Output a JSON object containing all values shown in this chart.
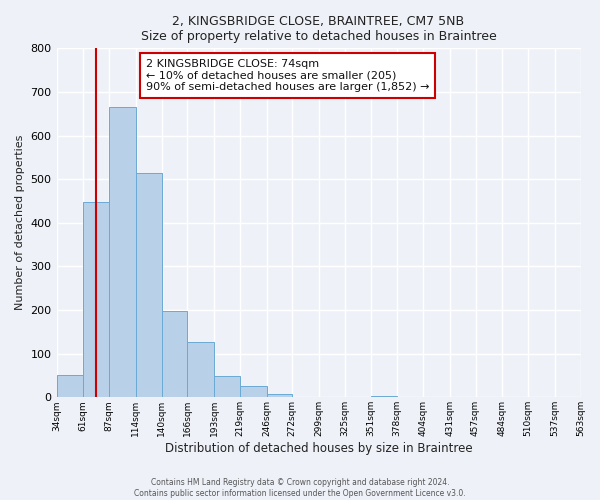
{
  "title": "2, KINGSBRIDGE CLOSE, BRAINTREE, CM7 5NB",
  "subtitle": "Size of property relative to detached houses in Braintree",
  "xlabel": "Distribution of detached houses by size in Braintree",
  "ylabel": "Number of detached properties",
  "bar_edges": [
    34,
    61,
    87,
    114,
    140,
    166,
    193,
    219,
    246,
    272,
    299,
    325,
    351,
    378,
    404,
    431,
    457,
    484,
    510,
    537,
    563
  ],
  "bar_heights": [
    50,
    447,
    665,
    515,
    197,
    127,
    49,
    26,
    8,
    0,
    0,
    0,
    4,
    0,
    0,
    0,
    0,
    0,
    0,
    0
  ],
  "bar_color": "#b8d0e8",
  "bar_edge_color": "#6aaad4",
  "tick_labels": [
    "34sqm",
    "61sqm",
    "87sqm",
    "114sqm",
    "140sqm",
    "166sqm",
    "193sqm",
    "219sqm",
    "246sqm",
    "272sqm",
    "299sqm",
    "325sqm",
    "351sqm",
    "378sqm",
    "404sqm",
    "431sqm",
    "457sqm",
    "484sqm",
    "510sqm",
    "537sqm",
    "563sqm"
  ],
  "ylim": [
    0,
    800
  ],
  "yticks": [
    0,
    100,
    200,
    300,
    400,
    500,
    600,
    700,
    800
  ],
  "property_line_x": 74,
  "property_line_color": "#cc0000",
  "annotation_title": "2 KINGSBRIDGE CLOSE: 74sqm",
  "annotation_line1": "← 10% of detached houses are smaller (205)",
  "annotation_line2": "90% of semi-detached houses are larger (1,852) →",
  "annotation_box_color": "#ffffff",
  "annotation_box_edge": "#cc0000",
  "footnote1": "Contains HM Land Registry data © Crown copyright and database right 2024.",
  "footnote2": "Contains public sector information licensed under the Open Government Licence v3.0.",
  "background_color": "#eef2f8",
  "grid_color": "#ffffff"
}
